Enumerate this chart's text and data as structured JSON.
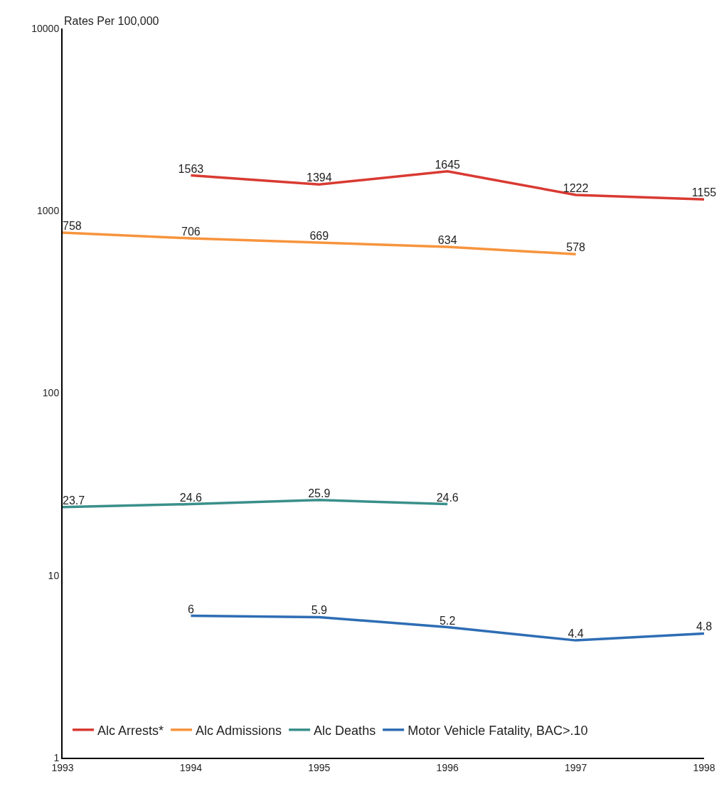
{
  "chart_data": {
    "type": "line",
    "ylabel": "Rates Per 100,000",
    "log": true,
    "xlim": [
      1993,
      1998
    ],
    "xticks": [
      1993,
      1994,
      1995,
      1996,
      1997,
      1998
    ],
    "ylim": [
      1,
      10000
    ],
    "yticks": [
      1,
      10,
      100,
      1000,
      10000
    ],
    "legend": "bottom left",
    "data_labels": true,
    "marker": "none",
    "line_style": "solid",
    "series": [
      {
        "name": "Alc Arrests*",
        "color": "#d93a32",
        "x": [
          1994,
          1995,
          1996,
          1997,
          1998
        ],
        "values": [
          1563,
          1394,
          1645,
          1222,
          1155
        ]
      },
      {
        "name": "Alc Admissions",
        "color": "#f7943d",
        "x": [
          1993,
          1994,
          1995,
          1996,
          1997
        ],
        "values": [
          758,
          706,
          669,
          634,
          578
        ]
      },
      {
        "name": "Alc Deaths",
        "color": "#3a8f8a",
        "x": [
          1993,
          1994,
          1995,
          1996
        ],
        "values": [
          23.7,
          24.6,
          25.9,
          24.6
        ]
      },
      {
        "name": "Motor Vehicle Fatality, BAC>.10",
        "color": "#2e6db4",
        "x": [
          1994,
          1995,
          1996,
          1997,
          1998
        ],
        "values": [
          6,
          5.9,
          5.2,
          4.4,
          4.8
        ]
      }
    ]
  }
}
